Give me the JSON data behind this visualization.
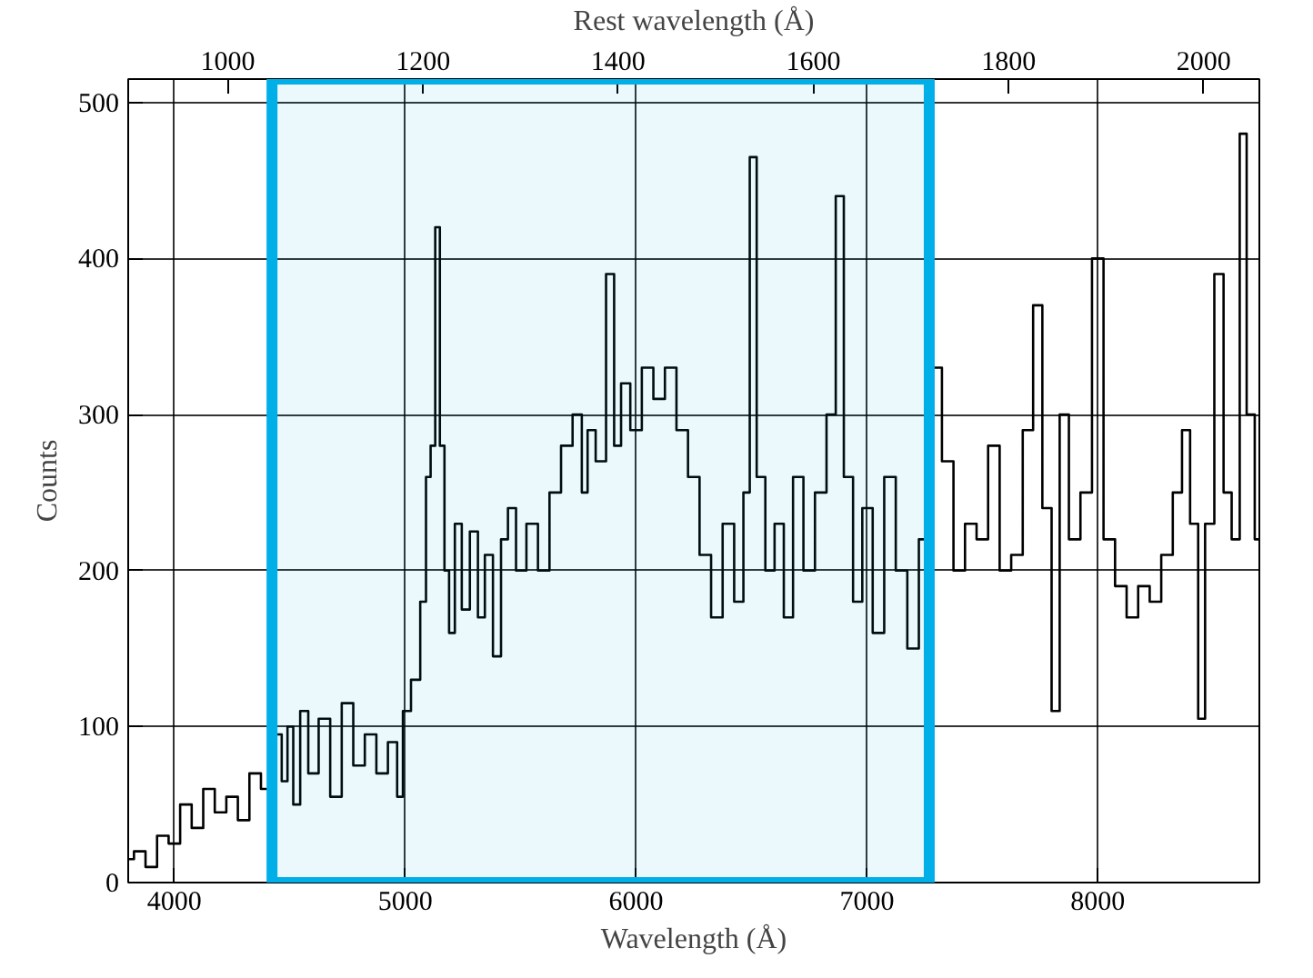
{
  "chart_data": {
    "type": "step",
    "xlabel": "Wavelength (Å)",
    "ylabel": "Counts",
    "x2label": "Rest wavelength (Å)",
    "xlim": [
      3800,
      8700
    ],
    "ylim": [
      0,
      515
    ],
    "x2lim": [
      898,
      2057
    ],
    "xticks": [
      4000,
      5000,
      6000,
      7000,
      8000
    ],
    "yticks": [
      0,
      100,
      200,
      300,
      400,
      500
    ],
    "x2ticks": [
      1000,
      1200,
      1400,
      1600,
      1800,
      2000
    ],
    "grid": true,
    "bands": [
      {
        "axis": "x",
        "from": 4423,
        "to": 7270,
        "color": "#00aee8"
      }
    ],
    "series": [
      {
        "color": "#000000",
        "x": [
          3800,
          3850,
          3900,
          3950,
          4000,
          4050,
          4100,
          4150,
          4200,
          4250,
          4300,
          4350,
          4400,
          4450,
          4480,
          4500,
          4530,
          4560,
          4600,
          4650,
          4700,
          4750,
          4800,
          4850,
          4900,
          4950,
          4980,
          5000,
          5050,
          5080,
          5100,
          5120,
          5140,
          5160,
          5180,
          5200,
          5230,
          5260,
          5300,
          5330,
          5360,
          5400,
          5430,
          5460,
          5500,
          5550,
          5600,
          5650,
          5700,
          5750,
          5780,
          5800,
          5850,
          5890,
          5920,
          5950,
          6000,
          6050,
          6100,
          6150,
          6200,
          6250,
          6300,
          6350,
          6400,
          6450,
          6480,
          6505,
          6540,
          6580,
          6620,
          6660,
          6700,
          6750,
          6800,
          6850,
          6880,
          6920,
          6960,
          7000,
          7050,
          7100,
          7150,
          7200,
          7250,
          7300,
          7350,
          7400,
          7450,
          7500,
          7550,
          7600,
          7650,
          7700,
          7740,
          7780,
          7820,
          7850,
          7900,
          7950,
          8000,
          8050,
          8100,
          8150,
          8200,
          8250,
          8300,
          8350,
          8380,
          8420,
          8450,
          8480,
          8530,
          8560,
          8600,
          8630,
          8660,
          8700
        ],
        "values": [
          15,
          20,
          10,
          30,
          25,
          50,
          35,
          60,
          45,
          55,
          40,
          70,
          60,
          95,
          65,
          100,
          50,
          110,
          70,
          105,
          55,
          115,
          75,
          95,
          70,
          90,
          55,
          110,
          130,
          180,
          260,
          280,
          420,
          280,
          200,
          160,
          230,
          175,
          225,
          170,
          210,
          145,
          220,
          240,
          200,
          230,
          200,
          250,
          280,
          300,
          250,
          290,
          270,
          390,
          280,
          320,
          290,
          330,
          310,
          330,
          290,
          260,
          210,
          170,
          230,
          180,
          250,
          465,
          260,
          200,
          230,
          170,
          260,
          200,
          250,
          300,
          440,
          260,
          180,
          240,
          160,
          260,
          200,
          150,
          220,
          330,
          270,
          200,
          230,
          220,
          280,
          200,
          210,
          290,
          370,
          240,
          110,
          300,
          220,
          250,
          400,
          220,
          190,
          170,
          190,
          180,
          210,
          250,
          290,
          230,
          105,
          230,
          390,
          250,
          220,
          480,
          300,
          220
        ]
      }
    ]
  }
}
